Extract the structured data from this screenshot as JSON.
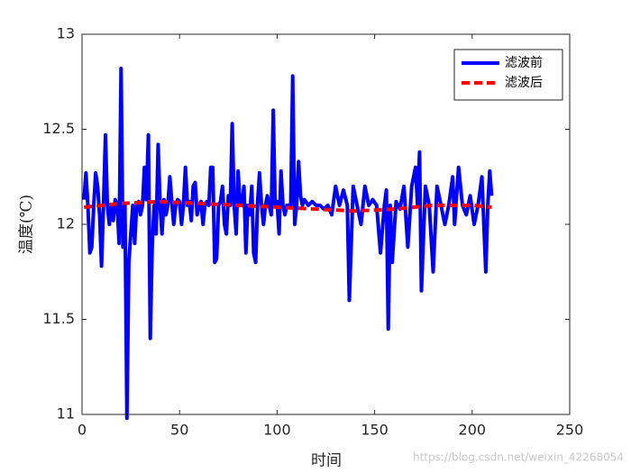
{
  "chart_data": {
    "type": "line",
    "xlabel": "时间",
    "ylabel": "温度(℃)",
    "xlim": [
      0,
      250
    ],
    "xticks": [
      0,
      50,
      100,
      150,
      200,
      250
    ],
    "ylim": [
      11,
      13
    ],
    "yticks": [
      11,
      11.5,
      12,
      12.5,
      13
    ],
    "legend": "northeast",
    "watermark": "https://blog.csdn.net/weixin_42268054",
    "series": [
      {
        "name": "滤波前",
        "color": "#0000ff",
        "dashed": false,
        "x": [
          1,
          2,
          3,
          4,
          5,
          6,
          7,
          8,
          9,
          10,
          11,
          12,
          13,
          14,
          15,
          16,
          17,
          18,
          19,
          20,
          21,
          22,
          23,
          24,
          25,
          26,
          27,
          28,
          29,
          30,
          31,
          32,
          33,
          34,
          35,
          36,
          37,
          38,
          39,
          40,
          41,
          42,
          43,
          44,
          45,
          46,
          47,
          48,
          49,
          50,
          51,
          52,
          53,
          54,
          55,
          56,
          57,
          58,
          59,
          60,
          61,
          62,
          63,
          64,
          65,
          66,
          67,
          68,
          69,
          70,
          71,
          72,
          73,
          74,
          75,
          76,
          77,
          78,
          79,
          80,
          81,
          82,
          83,
          84,
          85,
          86,
          87,
          88,
          89,
          90,
          91,
          92,
          93,
          94,
          95,
          96,
          97,
          98,
          99,
          100,
          101,
          102,
          103,
          104,
          105,
          106,
          107,
          108,
          109,
          110,
          111,
          112,
          113,
          114,
          116,
          118,
          120,
          122,
          124,
          126,
          128,
          130,
          132,
          134,
          136,
          137,
          139,
          141,
          143,
          145,
          147,
          149,
          151,
          153,
          155,
          156,
          157,
          158,
          159,
          161,
          163,
          165,
          167,
          169,
          171,
          172,
          173,
          174,
          176,
          178,
          180,
          182,
          184,
          186,
          188,
          190,
          191,
          193,
          195,
          197,
          199,
          201,
          203,
          205,
          207,
          208,
          209,
          210
        ],
        "values": [
          12.13,
          12.27,
          12.1,
          11.85,
          11.88,
          12.1,
          12.27,
          12.2,
          12.05,
          11.78,
          12.1,
          12.47,
          12.1,
          12.0,
          12.1,
          12.02,
          12.13,
          12.1,
          11.9,
          12.82,
          11.88,
          12.1,
          10.98,
          11.8,
          11.95,
          12.1,
          11.9,
          12.1,
          12.12,
          12.05,
          12.1,
          12.3,
          12.13,
          12.47,
          11.4,
          11.9,
          12.1,
          11.95,
          12.42,
          12.1,
          11.95,
          12.13,
          12.05,
          12.1,
          12.25,
          12.12,
          12.0,
          12.1,
          12.13,
          12.12,
          12.0,
          12.1,
          12.3,
          12.1,
          12.12,
          12.02,
          12.2,
          12.22,
          12.05,
          12.1,
          12.12,
          12.0,
          12.1,
          12.12,
          12.1,
          12.3,
          12.3,
          11.8,
          11.82,
          12.1,
          12.12,
          12.2,
          12.0,
          11.95,
          12.15,
          12.1,
          12.53,
          12.1,
          11.95,
          12.28,
          12.1,
          12.1,
          12.2,
          11.85,
          12.1,
          12.05,
          12.2,
          11.85,
          11.8,
          12.12,
          12.27,
          12.1,
          12.0,
          12.1,
          12.15,
          12.1,
          12.05,
          12.6,
          12.1,
          12.12,
          11.95,
          12.28,
          12.1,
          12.05,
          12.1,
          12.1,
          12.1,
          12.78,
          12.0,
          12.1,
          12.33,
          12.15,
          12.1,
          12.13,
          12.1,
          12.12,
          12.1,
          12.1,
          12.08,
          12.1,
          12.05,
          12.2,
          12.1,
          12.18,
          12.1,
          11.6,
          12.2,
          12.1,
          12.0,
          12.2,
          12.1,
          12.13,
          12.1,
          11.85,
          12.1,
          12.18,
          11.45,
          12.1,
          11.8,
          12.12,
          12.08,
          12.2,
          11.88,
          12.2,
          12.3,
          12.1,
          12.38,
          11.65,
          12.2,
          12.1,
          11.75,
          12.2,
          12.1,
          12.0,
          12.1,
          12.25,
          12.0,
          12.3,
          12.1,
          12.05,
          12.15,
          12.0,
          12.1,
          12.25,
          11.75,
          12.1,
          12.28,
          12.15
        ]
      },
      {
        "name": "滤波后",
        "color": "#ff0000",
        "dashed": true,
        "x": [
          1,
          20,
          40,
          60,
          80,
          100,
          120,
          140,
          160,
          180,
          200,
          210
        ],
        "values": [
          12.09,
          12.11,
          12.12,
          12.11,
          12.1,
          12.09,
          12.08,
          12.07,
          12.08,
          12.1,
          12.1,
          12.09
        ]
      }
    ]
  }
}
